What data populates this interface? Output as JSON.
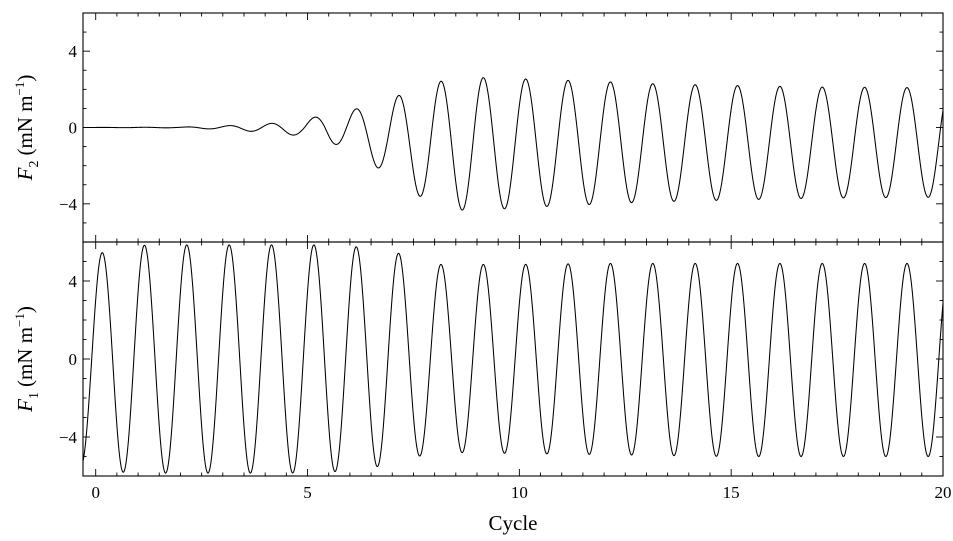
{
  "chart_data": [
    {
      "type": "line",
      "panel": "top",
      "ylabel": {
        "symbol": "F",
        "subscript": "2",
        "units": "(mN m",
        "exponent": "−1",
        "close": ")"
      },
      "xlim": [
        -0.3,
        20
      ],
      "ylim": [
        -6,
        6
      ],
      "yticks": [
        4,
        0,
        -4
      ],
      "ytick_labels": [
        "4",
        "0",
        "−4"
      ],
      "x_minor_step": 0.5,
      "y_minor_step": 1,
      "series": [
        {
          "period": 1,
          "phase": 0.15,
          "amplitude_envelope": {
            "x": [
              -0.3,
              2.0,
              3.0,
              4.0,
              4.9,
              5.4,
              5.9,
              6.4,
              6.9,
              7.4,
              7.9,
              8.4,
              8.9,
              9.4,
              10.0,
              11.0,
              12.0,
              13.0,
              15.0,
              17.0,
              20.0
            ],
            "maximum": [
              0.0,
              0.02,
              0.08,
              0.2,
              0.3,
              0.75,
              0.85,
              1.1,
              1.45,
              1.9,
              2.3,
              2.55,
              2.62,
              2.6,
              2.55,
              2.48,
              2.4,
              2.3,
              2.2,
              2.12,
              2.08
            ],
            "minimum": [
              0.0,
              -0.02,
              -0.1,
              -0.25,
              -0.45,
              -0.65,
              -1.1,
              -1.7,
              -2.5,
              -3.3,
              -3.9,
              -4.25,
              -4.4,
              -4.3,
              -4.2,
              -4.1,
              -4.0,
              -3.9,
              -3.8,
              -3.7,
              -3.65
            ]
          }
        }
      ]
    },
    {
      "type": "line",
      "panel": "bottom",
      "ylabel": {
        "symbol": "F",
        "subscript": "1",
        "units": "(mN m",
        "exponent": "−1",
        "close": ")"
      },
      "xlabel": "Cycle",
      "xlim": [
        -0.3,
        20
      ],
      "ylim": [
        -6,
        6
      ],
      "yticks": [
        4,
        0,
        -4
      ],
      "ytick_labels": [
        "4",
        "0",
        "−4"
      ],
      "xticks": [
        0,
        5,
        10,
        15,
        20
      ],
      "xtick_labels": [
        "0",
        "5",
        "10",
        "15",
        "20"
      ],
      "x_minor_step": 0.5,
      "y_minor_step": 1,
      "series": [
        {
          "period": 1,
          "phase": 0.15,
          "amplitude_envelope": {
            "x": [
              -0.3,
              0.5,
              1.5,
              2.5,
              3.5,
              4.5,
              5.5,
              6.5,
              7.2,
              8.0,
              9.0,
              10.0,
              12.0,
              15.0,
              20.0
            ],
            "maximum": [
              5.0,
              5.8,
              5.85,
              5.85,
              5.85,
              5.85,
              5.85,
              5.7,
              5.4,
              4.85,
              4.85,
              4.85,
              4.9,
              4.9,
              4.9
            ],
            "minimum": [
              -5.5,
              -5.8,
              -5.85,
              -5.85,
              -5.85,
              -5.85,
              -5.8,
              -5.6,
              -5.2,
              -4.8,
              -4.8,
              -4.85,
              -4.9,
              -5.0,
              -5.0
            ]
          }
        }
      ]
    }
  ]
}
